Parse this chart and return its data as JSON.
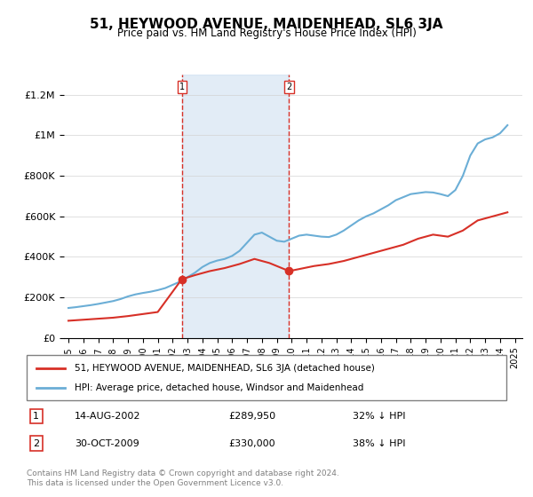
{
  "title": "51, HEYWOOD AVENUE, MAIDENHEAD, SL6 3JA",
  "subtitle": "Price paid vs. HM Land Registry's House Price Index (HPI)",
  "ylabel_ticks": [
    "£0",
    "£200K",
    "£400K",
    "£600K",
    "£800K",
    "£1M",
    "£1.2M"
  ],
  "ytick_values": [
    0,
    200000,
    400000,
    600000,
    800000,
    1000000,
    1200000
  ],
  "ylim": [
    0,
    1300000
  ],
  "xlim_start": 1995,
  "xlim_end": 2025.5,
  "xticks": [
    1995,
    1996,
    1997,
    1998,
    1999,
    2000,
    2001,
    2002,
    2003,
    2004,
    2005,
    2006,
    2007,
    2008,
    2009,
    2010,
    2011,
    2012,
    2013,
    2014,
    2015,
    2016,
    2017,
    2018,
    2019,
    2020,
    2021,
    2022,
    2023,
    2024,
    2025
  ],
  "hpi_color": "#6baed6",
  "sale_color": "#d73027",
  "marker_color": "#d73027",
  "shaded_color": "#c6dbef",
  "vline_color": "#d73027",
  "transaction1_x": 2002.617,
  "transaction1_y": 289950,
  "transaction2_x": 2009.831,
  "transaction2_y": 330000,
  "legend_entries": [
    "51, HEYWOOD AVENUE, MAIDENHEAD, SL6 3JA (detached house)",
    "HPI: Average price, detached house, Windsor and Maidenhead"
  ],
  "table_rows": [
    {
      "num": "1",
      "date": "14-AUG-2002",
      "price": "£289,950",
      "info": "32% ↓ HPI"
    },
    {
      "num": "2",
      "date": "30-OCT-2009",
      "price": "£330,000",
      "info": "38% ↓ HPI"
    }
  ],
  "footer": "Contains HM Land Registry data © Crown copyright and database right 2024.\nThis data is licensed under the Open Government Licence v3.0.",
  "hpi_x": [
    1995.0,
    1995.5,
    1996.0,
    1996.5,
    1997.0,
    1997.5,
    1998.0,
    1998.5,
    1999.0,
    1999.5,
    2000.0,
    2000.5,
    2001.0,
    2001.5,
    2002.0,
    2002.5,
    2003.0,
    2003.5,
    2004.0,
    2004.5,
    2005.0,
    2005.5,
    2006.0,
    2006.5,
    2007.0,
    2007.5,
    2008.0,
    2008.5,
    2009.0,
    2009.5,
    2010.0,
    2010.5,
    2011.0,
    2011.5,
    2012.0,
    2012.5,
    2013.0,
    2013.5,
    2014.0,
    2014.5,
    2015.0,
    2015.5,
    2016.0,
    2016.5,
    2017.0,
    2017.5,
    2018.0,
    2018.5,
    2019.0,
    2019.5,
    2020.0,
    2020.5,
    2021.0,
    2021.5,
    2022.0,
    2022.5,
    2023.0,
    2023.5,
    2024.0,
    2024.5
  ],
  "hpi_y": [
    148000,
    152000,
    157000,
    162000,
    168000,
    175000,
    182000,
    192000,
    205000,
    215000,
    222000,
    228000,
    236000,
    246000,
    262000,
    278000,
    300000,
    322000,
    350000,
    370000,
    382000,
    390000,
    405000,
    430000,
    470000,
    510000,
    520000,
    500000,
    480000,
    475000,
    490000,
    505000,
    510000,
    505000,
    500000,
    498000,
    510000,
    530000,
    555000,
    580000,
    600000,
    615000,
    635000,
    655000,
    680000,
    695000,
    710000,
    715000,
    720000,
    718000,
    710000,
    700000,
    730000,
    800000,
    900000,
    960000,
    980000,
    990000,
    1010000,
    1050000
  ],
  "sale_x": [
    1995.0,
    1996.0,
    1997.0,
    1998.0,
    1999.0,
    2000.0,
    2001.0,
    2002.617,
    2003.5,
    2004.5,
    2005.5,
    2006.5,
    2007.5,
    2008.5,
    2009.831,
    2010.5,
    2011.5,
    2012.5,
    2013.5,
    2014.5,
    2015.5,
    2016.5,
    2017.5,
    2018.5,
    2019.5,
    2020.5,
    2021.5,
    2022.5,
    2023.5,
    2024.5
  ],
  "sale_y": [
    85000,
    90000,
    95000,
    100000,
    108000,
    118000,
    128000,
    289950,
    310000,
    330000,
    345000,
    365000,
    390000,
    370000,
    330000,
    340000,
    355000,
    365000,
    380000,
    400000,
    420000,
    440000,
    460000,
    490000,
    510000,
    500000,
    530000,
    580000,
    600000,
    620000
  ]
}
